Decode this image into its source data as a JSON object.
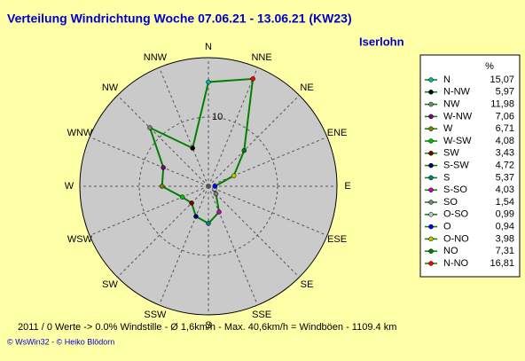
{
  "chart_data": {
    "type": "radar",
    "title": "Verteilung Windrichtung    Woche 07.06.21 - 13.06.21 (KW23)",
    "subtitle": "Iserlohn",
    "categories": [
      "N",
      "NNE",
      "NE",
      "ENE",
      "E",
      "ESE",
      "SE",
      "SSE",
      "S",
      "SSW",
      "SW",
      "WSW",
      "W",
      "WNW",
      "NW",
      "NNW"
    ],
    "legend_title": "%",
    "legend_names": [
      "N",
      "N-NW",
      "NW",
      "W-NW",
      "W",
      "W-SW",
      "SW",
      "S-SW",
      "S",
      "S-SO",
      "SO",
      "O-SO",
      "O",
      "O-NO",
      "NO",
      "N-NO"
    ],
    "values": [
      15.07,
      5.97,
      11.98,
      7.06,
      6.71,
      4.08,
      3.43,
      4.72,
      5.37,
      4.03,
      1.54,
      0.99,
      0.94,
      3.98,
      7.31,
      16.81
    ],
    "value_labels": [
      "15,07",
      "5,97",
      "11,98",
      "7,06",
      "6,71",
      "4,08",
      "3,43",
      "4,72",
      "5,37",
      "4,03",
      "1,54",
      "0,99",
      "0,94",
      "3,98",
      "7,31",
      "16,81"
    ],
    "point_colors": [
      "#00b0b0",
      "#000000",
      "#808080",
      "#800080",
      "#808000",
      "#00c000",
      "#800000",
      "#000080",
      "#008080",
      "#c000c0",
      "#808080",
      "#c0c0c0",
      "#0000ff",
      "#c0c000",
      "#008000",
      "#ff0000"
    ],
    "line_color": "#008000",
    "rlim": [
      0,
      18.6
    ],
    "rticks": [
      10
    ],
    "footer": "2011 / 0 Werte  -> 0.0% Windstille  -  Ø 1,6km/h  -  Max. 40,6km/h = Windböen  -  1109.4 km",
    "credit": "© WsWin32  -  © Heiko Blödorn"
  }
}
